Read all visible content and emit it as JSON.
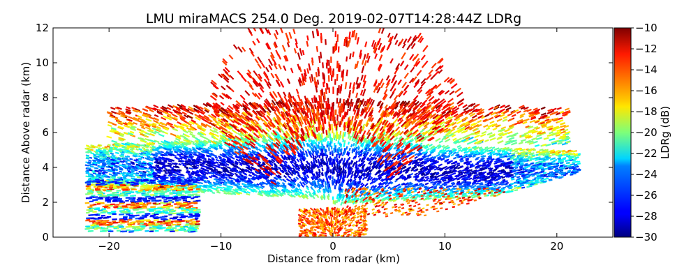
{
  "chart_data": {
    "type": "heatmap",
    "title": "LMU miraMACS 254.0 Deg. 2019-02-07T14:28:44Z  LDRg",
    "xlabel": "Distance from radar (km)",
    "ylabel": "Distance Above radar  (km)",
    "xlim": [
      -25,
      25
    ],
    "ylim": [
      0,
      12
    ],
    "xticks": [
      -20,
      -10,
      0,
      10,
      20
    ],
    "xtick_labels": [
      "−20",
      "−10",
      "0",
      "10",
      "20"
    ],
    "yticks": [
      0,
      2,
      4,
      6,
      8,
      10,
      12
    ],
    "ytick_labels": [
      "0",
      "2",
      "4",
      "6",
      "8",
      "10",
      "12"
    ],
    "colorbar": {
      "label": "LDRg (dB)",
      "range": [
        -30,
        -10
      ],
      "colormap": "jet",
      "ticks": [
        -10,
        -12,
        -14,
        -16,
        -18,
        -20,
        -22,
        -24,
        -26,
        -28,
        -30
      ],
      "tick_labels": [
        "−10",
        "−12",
        "−14",
        "−16",
        "−18",
        "−20",
        "−22",
        "−24",
        "−26",
        "−28",
        "−30"
      ]
    },
    "scan": {
      "azimuth_deg": 254.0,
      "range_limit_km": 22,
      "description": "RHI scan; low LDR (-30 to -26 dB) cloud core between 2 and 6 km height, higher LDR (-20 to -10 dB) noisy echoes above ~6 km and near the ground"
    }
  }
}
